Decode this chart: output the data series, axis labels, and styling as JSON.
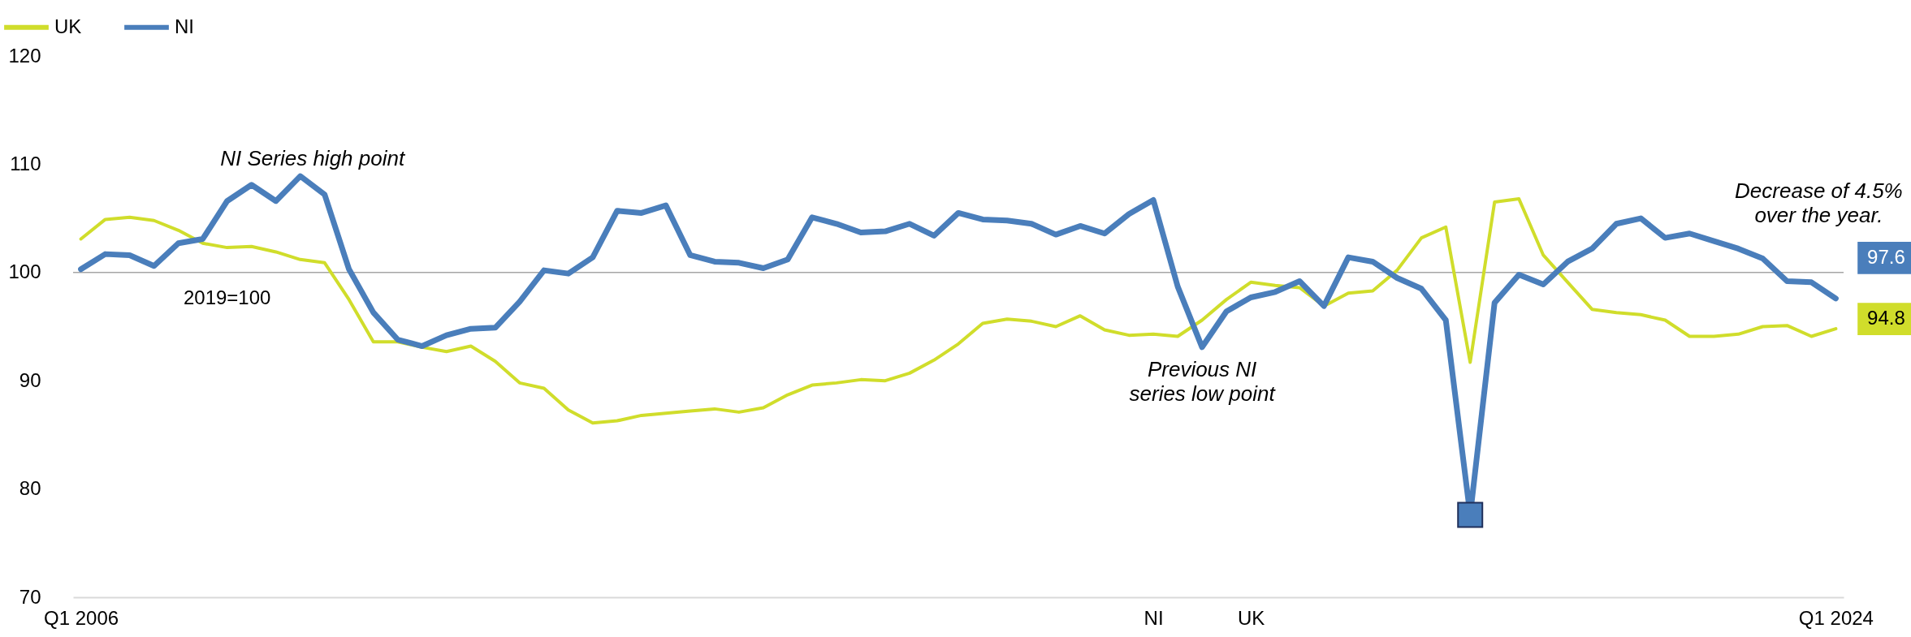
{
  "chart_data": {
    "type": "line",
    "categories": [
      "Q1 2006",
      null,
      null,
      null,
      null,
      null,
      null,
      null,
      null,
      null,
      null,
      null,
      null,
      null,
      null,
      null,
      null,
      null,
      null,
      null,
      null,
      null,
      null,
      null,
      null,
      null,
      null,
      null,
      null,
      null,
      null,
      null,
      null,
      null,
      null,
      null,
      null,
      null,
      null,
      null,
      null,
      null,
      null,
      null,
      "NI",
      null,
      null,
      null,
      "UK",
      null,
      null,
      null,
      null,
      null,
      null,
      null,
      null,
      null,
      null,
      null,
      null,
      null,
      null,
      null,
      null,
      null,
      null,
      null,
      null,
      null,
      null,
      null,
      "Q1 2024"
    ],
    "series": [
      {
        "name": "UK",
        "color": "#d0dd2b",
        "values": [
          103.1,
          104.9,
          105.1,
          104.8,
          103.9,
          102.7,
          102.3,
          102.4,
          101.9,
          101.2,
          100.9,
          97.5,
          93.6,
          93.6,
          93.1,
          92.7,
          93.2,
          91.8,
          89.8,
          89.3,
          87.3,
          86.1,
          86.3,
          86.8,
          87.0,
          87.2,
          87.4,
          87.1,
          87.5,
          88.7,
          89.6,
          89.8,
          90.1,
          90.0,
          90.7,
          91.9,
          93.4,
          95.3,
          95.7,
          95.5,
          95.0,
          96.0,
          94.7,
          94.2,
          94.3,
          94.1,
          95.6,
          97.5,
          99.1,
          98.8,
          98.6,
          96.9,
          98.1,
          98.3,
          100.2,
          103.2,
          104.2,
          91.7,
          106.5,
          106.8,
          101.6,
          99.1,
          96.6,
          96.3,
          96.1,
          95.6,
          94.1,
          94.1,
          94.3,
          95.0,
          95.1,
          94.1,
          94.8
        ],
        "value_labels": [
          null,
          null,
          null,
          null,
          null,
          null,
          null,
          null,
          null,
          null,
          null,
          null,
          null,
          null,
          null,
          null,
          null,
          null,
          null,
          null,
          null,
          null,
          null,
          null,
          null,
          null,
          null,
          null,
          null,
          null,
          null,
          null,
          null,
          null,
          null,
          null,
          null,
          null,
          null,
          null,
          null,
          null,
          null,
          null,
          null,
          null,
          null,
          null,
          null,
          null,
          null,
          null,
          null,
          null,
          null,
          null,
          null,
          null,
          null,
          null,
          null,
          null,
          null,
          null,
          null,
          null,
          null,
          null,
          null,
          null,
          null,
          null,
          "94.8"
        ]
      },
      {
        "name": "NI",
        "color": "#4a7ebb",
        "values": [
          100.3,
          101.7,
          101.6,
          100.6,
          102.7,
          103.1,
          106.6,
          108.1,
          106.6,
          108.9,
          107.2,
          100.3,
          96.3,
          93.8,
          93.2,
          94.2,
          94.8,
          94.9,
          97.3,
          100.2,
          99.9,
          101.4,
          105.7,
          105.5,
          106.2,
          101.6,
          101.0,
          100.9,
          100.4,
          101.2,
          105.1,
          104.5,
          103.7,
          103.8,
          104.5,
          103.4,
          105.5,
          104.9,
          104.8,
          104.5,
          103.5,
          104.3,
          103.6,
          105.4,
          106.7,
          98.7,
          93.1,
          96.4,
          97.7,
          98.2,
          99.2,
          96.9,
          101.4,
          101.0,
          99.5,
          98.5,
          95.6,
          77.6,
          97.2,
          99.8,
          98.9,
          101.0,
          102.2,
          104.5,
          105.0,
          103.2,
          103.6,
          102.9,
          102.2,
          101.3,
          99.2,
          99.1,
          97.6
        ],
        "value_labels": [
          null,
          null,
          null,
          null,
          null,
          null,
          null,
          null,
          null,
          null,
          null,
          null,
          null,
          null,
          null,
          null,
          null,
          null,
          null,
          null,
          null,
          null,
          null,
          null,
          null,
          null,
          null,
          null,
          null,
          null,
          null,
          null,
          null,
          null,
          null,
          null,
          null,
          null,
          null,
          null,
          null,
          null,
          null,
          null,
          null,
          null,
          null,
          null,
          null,
          null,
          null,
          null,
          null,
          null,
          null,
          null,
          null,
          null,
          null,
          null,
          null,
          null,
          null,
          null,
          null,
          null,
          null,
          null,
          null,
          null,
          null,
          null,
          "97.6"
        ]
      },
      {
        "type": "scatter",
        "marker": "square",
        "color": "#4a7ebb",
        "values": [
          null,
          null,
          null,
          null,
          null,
          null,
          null,
          null,
          null,
          null,
          null,
          null,
          null,
          null,
          null,
          null,
          null,
          null,
          null,
          null,
          null,
          null,
          null,
          null,
          null,
          null,
          null,
          null,
          null,
          null,
          null,
          null,
          null,
          null,
          null,
          null,
          null,
          null,
          null,
          null,
          null,
          null,
          null,
          null,
          null,
          null,
          null,
          null,
          null,
          null,
          null,
          null,
          null,
          null,
          null,
          null,
          null,
          77.6,
          null,
          null,
          null,
          null,
          null,
          null,
          null,
          null,
          null,
          null,
          null,
          null,
          null,
          null,
          null
        ]
      }
    ],
    "ylim": [
      70,
      120
    ],
    "yticks": [
      70,
      80,
      90,
      100,
      110,
      120
    ],
    "ref_lines": [
      {
        "axis": "y",
        "value": 100,
        "label": "2019=100",
        "color": "#a6a6a6"
      }
    ],
    "annotations": [
      "NI Series high point",
      "Previous NI\nseries low point",
      "Decrease of 4.5%\nover the year."
    ],
    "legend": "top left",
    "grid": false,
    "marker": "none",
    "line_style": "solid"
  }
}
